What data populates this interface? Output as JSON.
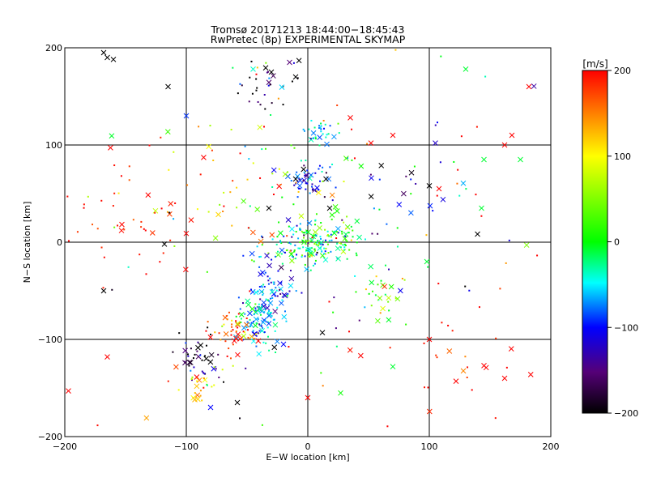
{
  "chart_data": {
    "type": "scatter",
    "title": "Tromsø 20171213 18:44:00−18:45:43",
    "subtitle": "RwPretec (8p) EXPERIMENTAL SKYMAP",
    "xlabel": "E−W location [km]",
    "ylabel": "N−S location [km]",
    "xlim": [
      -200,
      200
    ],
    "ylim": [
      -200,
      200
    ],
    "x_ticks": [
      -200,
      -100,
      0,
      100,
      200
    ],
    "y_ticks": [
      -200,
      -100,
      0,
      100,
      200
    ],
    "x_tick_labels": [
      "−200",
      "−100",
      "0",
      "100",
      "200"
    ],
    "y_tick_labels": [
      "−200",
      "−100",
      "0",
      "100",
      "200"
    ],
    "grid": true,
    "markers": [
      "dot",
      "x"
    ],
    "colorbar": {
      "label": "[m/s]",
      "range": [
        -200,
        200
      ],
      "ticks": [
        200,
        100,
        0,
        -100,
        -200
      ],
      "tick_labels": [
        "200",
        "100",
        "0",
        "−100",
        "−200"
      ],
      "colors": [
        "#000000",
        "#550077",
        "#0000ff",
        "#00ffff",
        "#00ff00",
        "#ffff00",
        "#ff0000"
      ]
    },
    "clusters": [
      {
        "x": -30,
        "y": 165,
        "sx": 15,
        "sy": 15,
        "v": -180,
        "sv": 60,
        "n": 30
      },
      {
        "x": 10,
        "y": 112,
        "sx": 6,
        "sy": 6,
        "v": -60,
        "sv": 30,
        "n": 30
      },
      {
        "x": 0,
        "y": 65,
        "sx": 8,
        "sy": 8,
        "v": -110,
        "sv": 40,
        "n": 50
      },
      {
        "x": 15,
        "y": 0,
        "sx": 18,
        "sy": 12,
        "v": -10,
        "sv": 40,
        "n": 120
      },
      {
        "x": -15,
        "y": -5,
        "sx": 15,
        "sy": 10,
        "v": -40,
        "sv": 70,
        "n": 80
      },
      {
        "x": -30,
        "y": -50,
        "sx": 12,
        "sy": 15,
        "v": -80,
        "sv": 40,
        "n": 70
      },
      {
        "x": -40,
        "y": -80,
        "sx": 10,
        "sy": 12,
        "v": -60,
        "sv": 30,
        "n": 80
      },
      {
        "x": -60,
        "y": -95,
        "sx": 10,
        "sy": 10,
        "v": 170,
        "sv": 50,
        "n": 50
      },
      {
        "x": -90,
        "y": -120,
        "sx": 10,
        "sy": 15,
        "v": -170,
        "sv": 60,
        "n": 40
      },
      {
        "x": -90,
        "y": -150,
        "sx": 8,
        "sy": 10,
        "v": 120,
        "sv": 50,
        "n": 25
      },
      {
        "x": 60,
        "y": -60,
        "sx": 15,
        "sy": 15,
        "v": 20,
        "sv": 60,
        "n": 30
      },
      {
        "x": -60,
        "y": 60,
        "sx": 40,
        "sy": 40,
        "v": 100,
        "sv": 80,
        "n": 60
      },
      {
        "x": 60,
        "y": 50,
        "sx": 40,
        "sy": 30,
        "v": -100,
        "sv": 80,
        "n": 40
      },
      {
        "x": -150,
        "y": 30,
        "sx": 30,
        "sy": 30,
        "v": 190,
        "sv": 20,
        "n": 40
      },
      {
        "x": 120,
        "y": -120,
        "sx": 40,
        "sy": 40,
        "v": 190,
        "sv": 20,
        "n": 30
      },
      {
        "x": 0,
        "y": 0,
        "sx": 130,
        "sy": 130,
        "v": 50,
        "sv": 200,
        "n": 120
      }
    ],
    "crosses": [
      {
        "x": -168,
        "y": 195,
        "v": -200
      },
      {
        "x": -165,
        "y": 190,
        "v": -200
      },
      {
        "x": -160,
        "y": 188,
        "v": -200
      },
      {
        "x": -115,
        "y": 160,
        "v": -200
      },
      {
        "x": -100,
        "y": 130,
        "v": -90
      },
      {
        "x": -45,
        "y": 178,
        "v": -40
      },
      {
        "x": -30,
        "y": 175,
        "v": -200
      },
      {
        "x": -15,
        "y": 185,
        "v": -150
      },
      {
        "x": -10,
        "y": 170,
        "v": -200
      },
      {
        "x": 35,
        "y": 128,
        "v": 200
      },
      {
        "x": 70,
        "y": 110,
        "v": 200
      },
      {
        "x": 52,
        "y": 102,
        "v": 200
      },
      {
        "x": 105,
        "y": 102,
        "v": -120
      },
      {
        "x": 130,
        "y": 178,
        "v": -10
      },
      {
        "x": 182,
        "y": 160,
        "v": 200
      },
      {
        "x": 168,
        "y": 110,
        "v": 200
      },
      {
        "x": 162,
        "y": 100,
        "v": 200
      },
      {
        "x": 175,
        "y": 85,
        "v": -10
      },
      {
        "x": 145,
        "y": 85,
        "v": -10
      },
      {
        "x": 143,
        "y": 35,
        "v": -10
      },
      {
        "x": 100,
        "y": 58,
        "v": -200
      },
      {
        "x": 108,
        "y": 55,
        "v": 200
      },
      {
        "x": -10,
        "y": 65,
        "v": -200
      },
      {
        "x": 15,
        "y": 65,
        "v": -200
      },
      {
        "x": 18,
        "y": 35,
        "v": -200
      },
      {
        "x": -32,
        "y": 35,
        "v": -200
      },
      {
        "x": -118,
        "y": -2,
        "v": -200
      },
      {
        "x": -168,
        "y": -50,
        "v": -200
      },
      {
        "x": -165,
        "y": -118,
        "v": 200
      },
      {
        "x": -197,
        "y": -153,
        "v": 200
      },
      {
        "x": -20,
        "y": -105,
        "v": -100
      },
      {
        "x": 12,
        "y": -93,
        "v": -200
      },
      {
        "x": 0,
        "y": -160,
        "v": 200
      },
      {
        "x": -58,
        "y": -165,
        "v": -200
      },
      {
        "x": -80,
        "y": -170,
        "v": -100
      },
      {
        "x": -93,
        "y": -162,
        "v": 130
      },
      {
        "x": 122,
        "y": -143,
        "v": 200
      },
      {
        "x": 162,
        "y": -140,
        "v": 200
      },
      {
        "x": 145,
        "y": -127,
        "v": 200
      },
      {
        "x": 100,
        "y": -100,
        "v": 200
      },
      {
        "x": 70,
        "y": -128,
        "v": -10
      },
      {
        "x": 98,
        "y": -20,
        "v": -10
      }
    ]
  }
}
